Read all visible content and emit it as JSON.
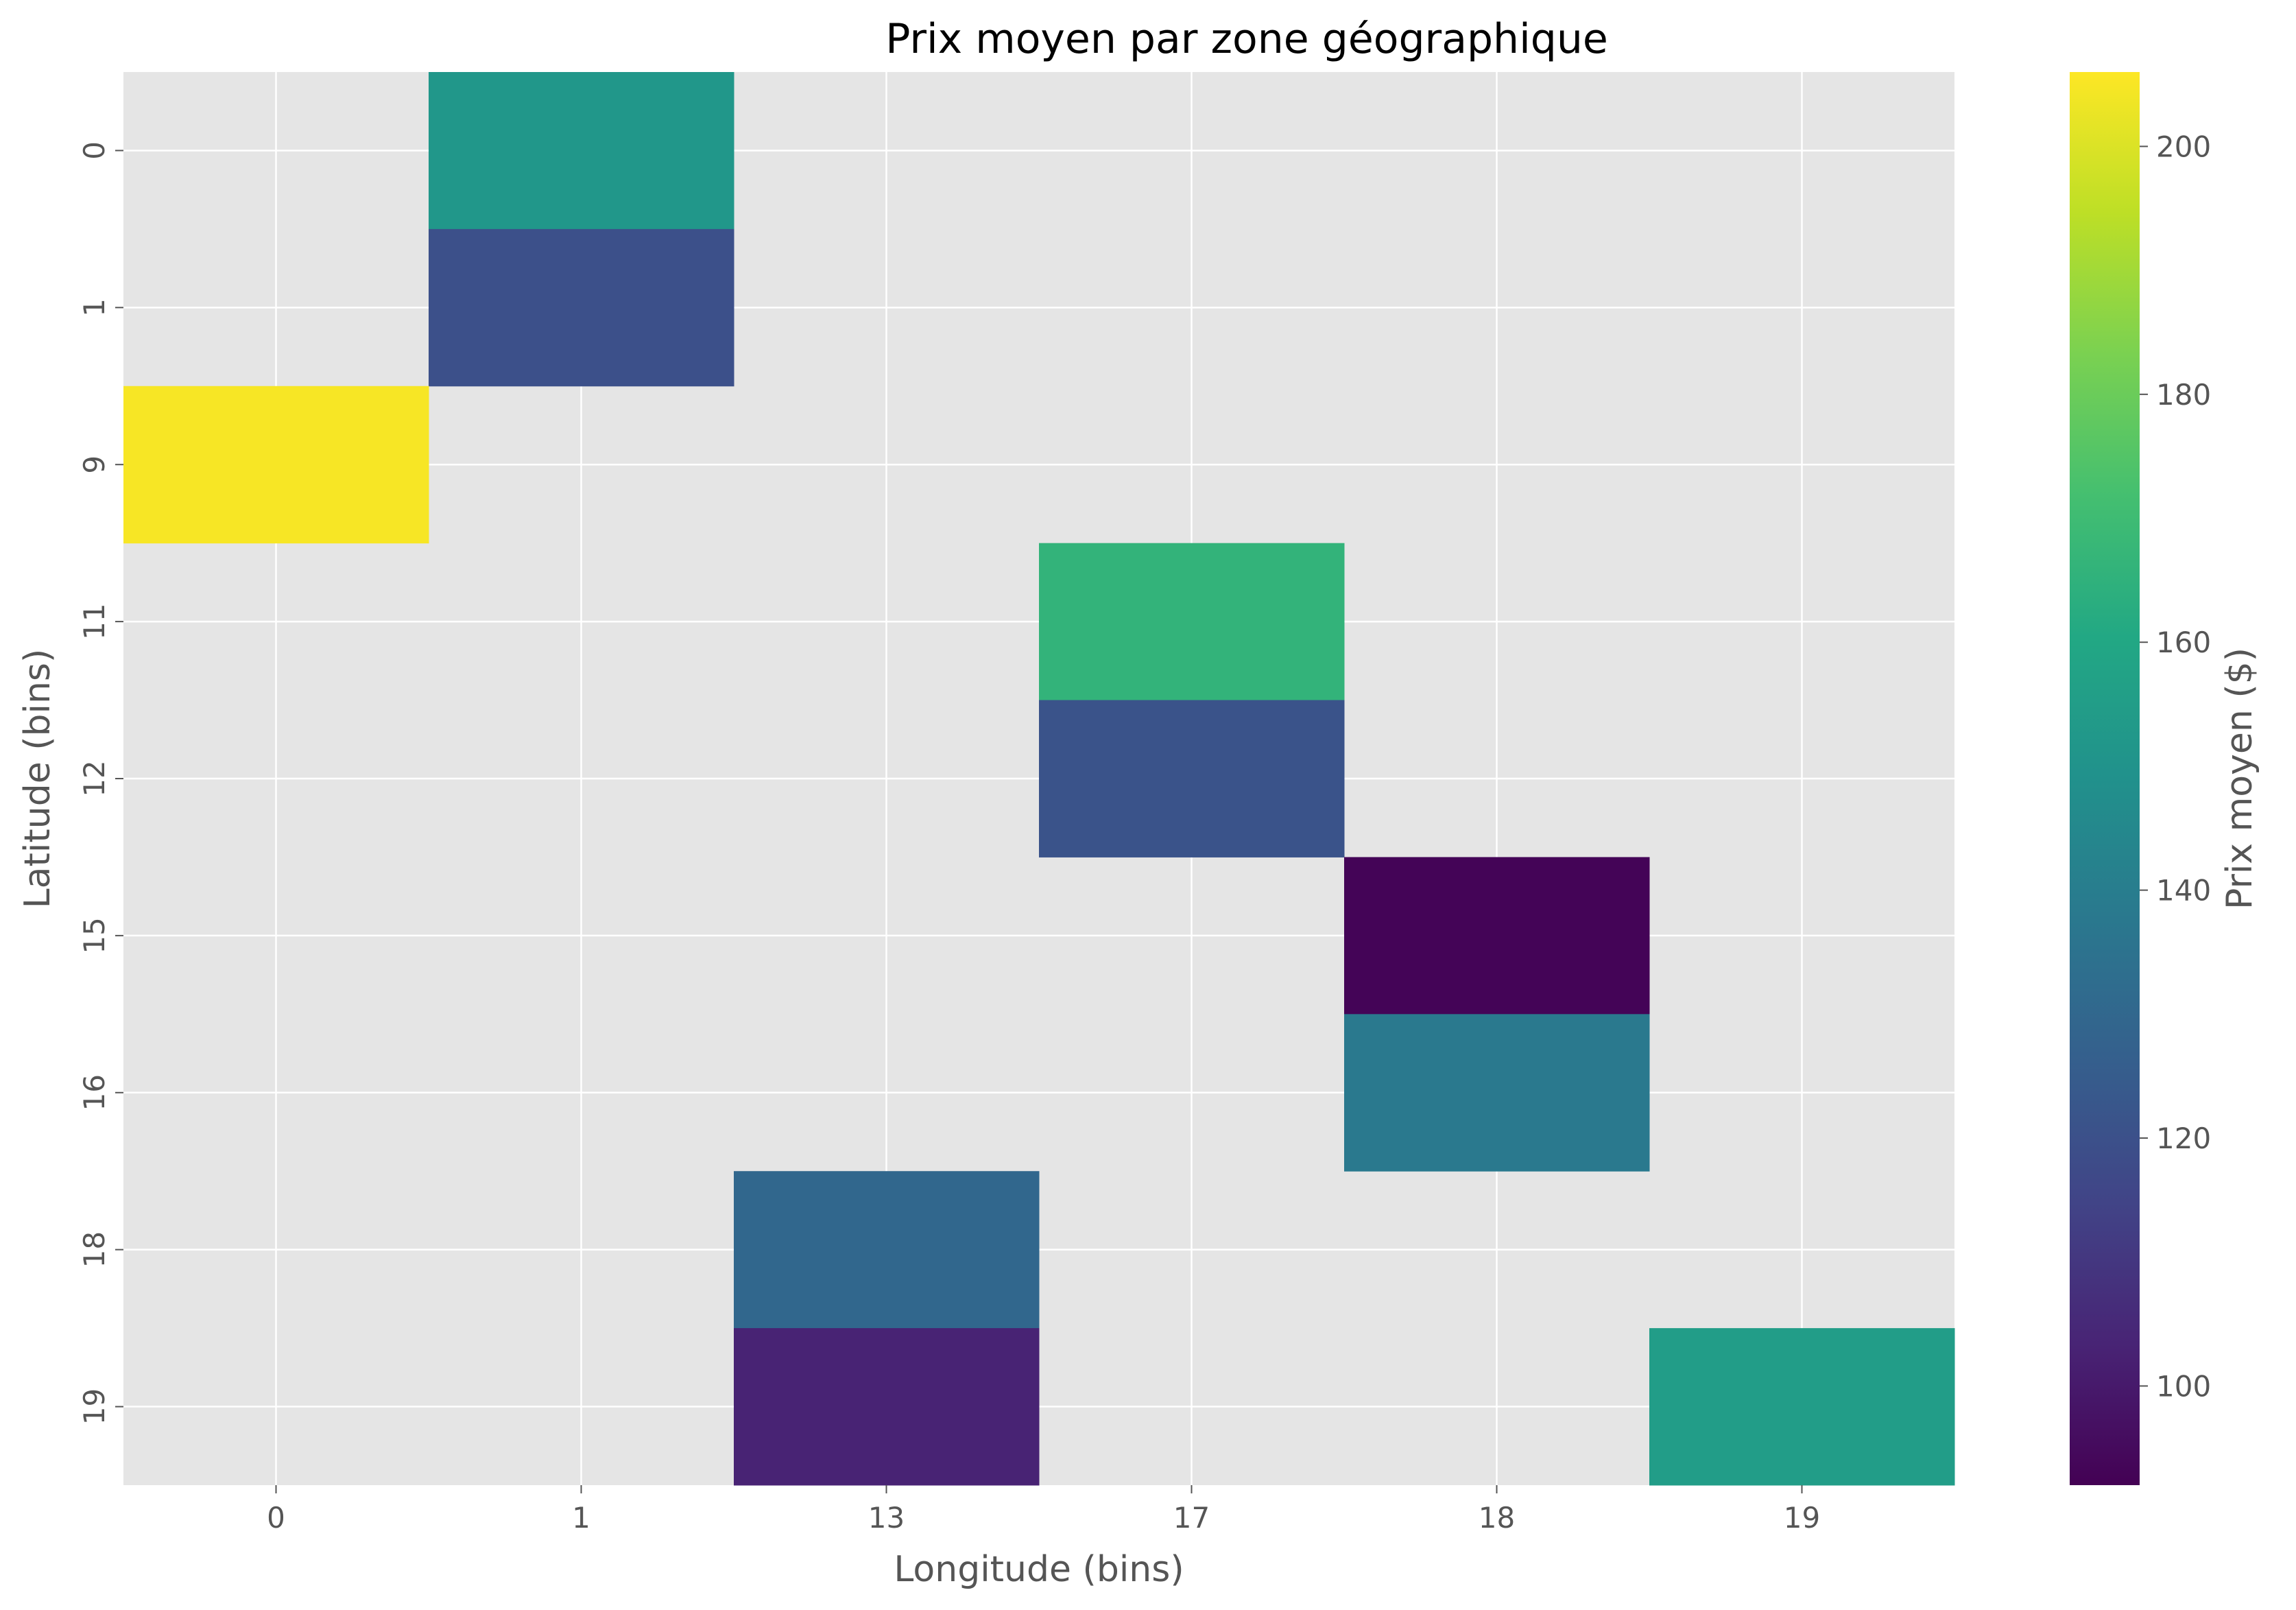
{
  "chart_data": {
    "type": "heatmap",
    "title": "Prix moyen par zone géographique",
    "xlabel": "Longitude (bins)",
    "ylabel": "Latitude (bins)",
    "colorbar_label": "Prix moyen ($)",
    "colormap": "viridis",
    "x_categories": [
      "0",
      "1",
      "13",
      "17",
      "18",
      "19"
    ],
    "y_categories": [
      "0",
      "1",
      "9",
      "11",
      "12",
      "15",
      "16",
      "18",
      "19"
    ],
    "cells": [
      {
        "x": "1",
        "y": "0",
        "value": 152
      },
      {
        "x": "1",
        "y": "1",
        "value": 120
      },
      {
        "x": "0",
        "y": "9",
        "value": 205
      },
      {
        "x": "17",
        "y": "11",
        "value": 166
      },
      {
        "x": "17",
        "y": "12",
        "value": 121
      },
      {
        "x": "18",
        "y": "15",
        "value": 93
      },
      {
        "x": "18",
        "y": "16",
        "value": 138
      },
      {
        "x": "13",
        "y": "18",
        "value": 130
      },
      {
        "x": "13",
        "y": "19",
        "value": 103
      },
      {
        "x": "19",
        "y": "19",
        "value": 155
      }
    ],
    "colorbar_range": [
      92,
      206
    ],
    "colorbar_ticks": [
      100,
      120,
      140,
      160,
      180,
      200
    ],
    "grid": true,
    "background": "#e5e5e5"
  }
}
